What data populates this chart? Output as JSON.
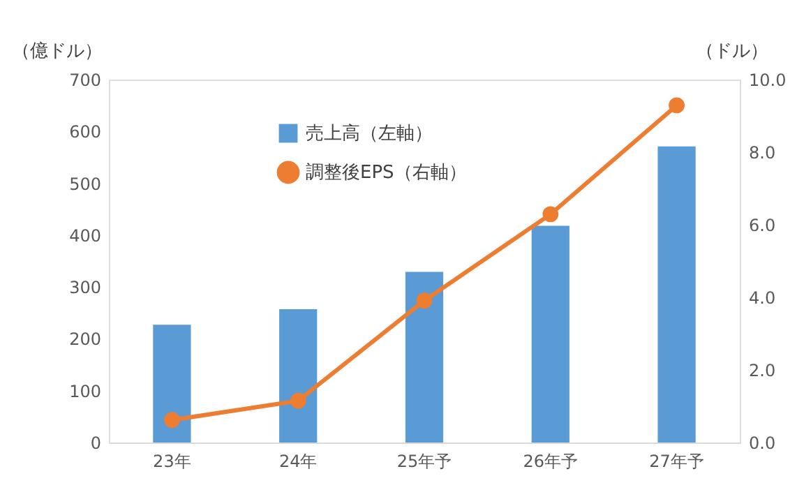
{
  "chart_data": {
    "type": "bar",
    "categories": [
      "23年",
      "24年",
      "25年予",
      "26年予",
      "27年予"
    ],
    "ylabel": "（億ドル）",
    "y2label": "（ドル）",
    "ylim": [
      0,
      700
    ],
    "yticks": [
      0,
      100,
      200,
      300,
      400,
      500,
      600,
      700
    ],
    "y2lim": [
      0,
      10
    ],
    "y2ticks": [
      {
        "value": 0,
        "label": "0.0"
      },
      {
        "value": 2,
        "label": "2.0"
      },
      {
        "value": 4,
        "label": "4.0"
      },
      {
        "value": 6,
        "label": "6.0"
      },
      {
        "value": 8,
        "label": "8.0"
      },
      {
        "value": 10,
        "label": "10.0"
      }
    ],
    "grid": false,
    "legend": "top left",
    "series": [
      {
        "name": "売上高（左軸）",
        "color": "#5b9bd5",
        "values": [
          227,
          257,
          329,
          418,
          571
        ]
      },
      {
        "name": "調整後EPS（右軸）",
        "color": "#ed7d31",
        "type": "line",
        "axis": "y2",
        "marker": "circle",
        "line_style": "solid",
        "values": [
          0.62,
          1.15,
          3.91,
          6.29,
          9.29
        ]
      }
    ]
  }
}
